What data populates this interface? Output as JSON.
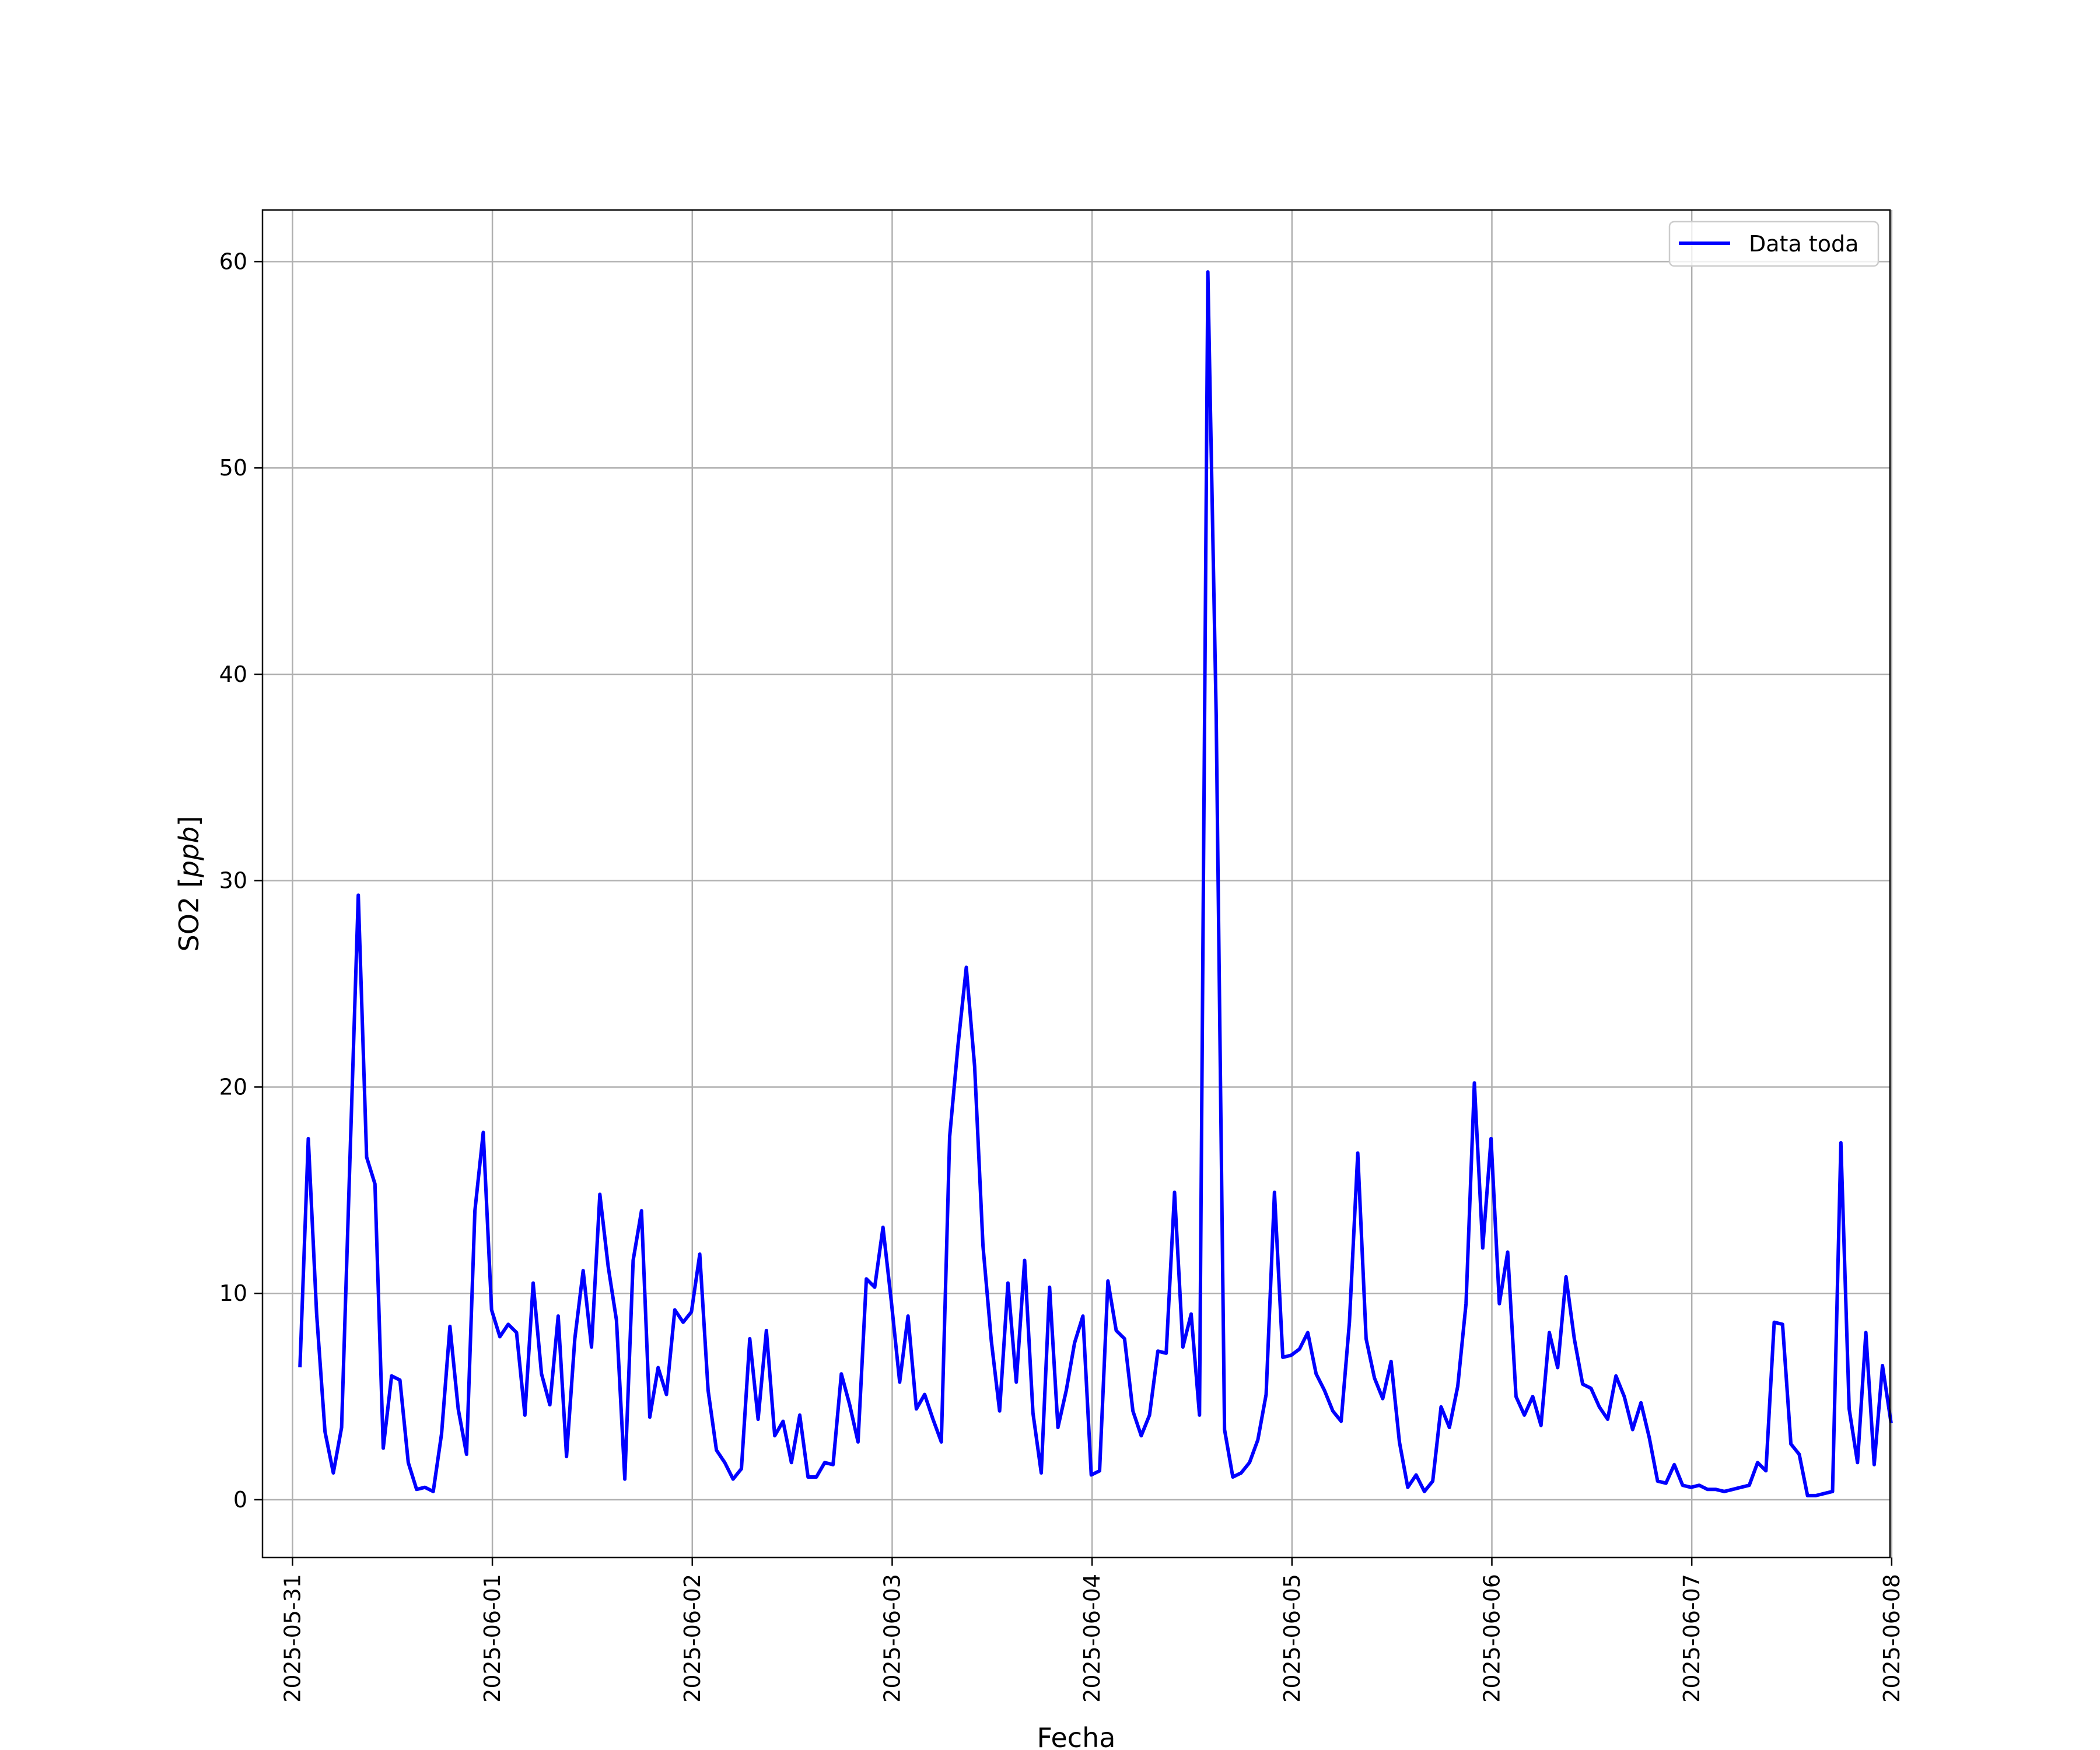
{
  "chart_data": {
    "type": "line",
    "xlabel": "Fecha",
    "ylabel": "SO2 [ppb]",
    "ylabel_italic_part": "ppb",
    "ylim": [
      -2.8,
      62.5
    ],
    "yticks": [
      0,
      10,
      20,
      30,
      40,
      50,
      60
    ],
    "xlim_hours": [
      -3.6,
      191.8
    ],
    "xticks": [
      "2025-05-31",
      "2025-06-01",
      "2025-06-02",
      "2025-06-03",
      "2025-06-04",
      "2025-06-05",
      "2025-06-06",
      "2025-06-07",
      "2025-06-08"
    ],
    "grid": true,
    "legend_position": "top-right",
    "series": [
      {
        "name": "Data toda",
        "color": "#0000ff",
        "points": [
          [
            0.9,
            6.5
          ],
          [
            1.9,
            17.5
          ],
          [
            2.9,
            9.0
          ],
          [
            3.9,
            3.3
          ],
          [
            4.9,
            1.3
          ],
          [
            5.9,
            3.5
          ],
          [
            6.9,
            16.5
          ],
          [
            7.9,
            29.3
          ],
          [
            8.9,
            16.6
          ],
          [
            9.9,
            15.3
          ],
          [
            10.9,
            2.5
          ],
          [
            11.9,
            6.0
          ],
          [
            12.9,
            5.8
          ],
          [
            13.9,
            1.8
          ],
          [
            14.9,
            0.5
          ],
          [
            15.9,
            0.6
          ],
          [
            16.9,
            0.4
          ],
          [
            17.9,
            3.2
          ],
          [
            18.9,
            8.4
          ],
          [
            19.9,
            4.4
          ],
          [
            20.9,
            2.2
          ],
          [
            21.9,
            14.0
          ],
          [
            22.9,
            17.8
          ],
          [
            23.9,
            9.2
          ],
          [
            24.9,
            7.9
          ],
          [
            25.9,
            8.5
          ],
          [
            26.9,
            8.1
          ],
          [
            27.9,
            4.1
          ],
          [
            28.9,
            10.5
          ],
          [
            29.9,
            6.1
          ],
          [
            30.9,
            4.6
          ],
          [
            31.9,
            8.9
          ],
          [
            32.9,
            2.1
          ],
          [
            33.9,
            7.8
          ],
          [
            34.9,
            11.1
          ],
          [
            35.9,
            7.4
          ],
          [
            36.9,
            14.8
          ],
          [
            37.9,
            11.3
          ],
          [
            38.9,
            8.7
          ],
          [
            39.9,
            1.0
          ],
          [
            40.9,
            11.6
          ],
          [
            41.9,
            14.0
          ],
          [
            42.9,
            4.0
          ],
          [
            43.9,
            6.4
          ],
          [
            44.9,
            5.1
          ],
          [
            45.9,
            9.2
          ],
          [
            46.9,
            8.6
          ],
          [
            47.9,
            9.1
          ],
          [
            48.9,
            11.9
          ],
          [
            49.9,
            5.3
          ],
          [
            50.9,
            2.4
          ],
          [
            51.9,
            1.8
          ],
          [
            52.9,
            1.0
          ],
          [
            53.9,
            1.5
          ],
          [
            54.9,
            7.8
          ],
          [
            55.9,
            3.9
          ],
          [
            56.9,
            8.2
          ],
          [
            57.9,
            3.1
          ],
          [
            58.9,
            3.8
          ],
          [
            59.9,
            1.8
          ],
          [
            60.9,
            4.1
          ],
          [
            61.9,
            1.1
          ],
          [
            62.9,
            1.1
          ],
          [
            63.9,
            1.8
          ],
          [
            64.9,
            1.7
          ],
          [
            65.9,
            6.1
          ],
          [
            66.9,
            4.6
          ],
          [
            67.9,
            2.8
          ],
          [
            68.9,
            10.7
          ],
          [
            69.9,
            10.3
          ],
          [
            70.9,
            13.2
          ],
          [
            71.9,
            9.6
          ],
          [
            72.9,
            5.7
          ],
          [
            73.9,
            8.9
          ],
          [
            74.9,
            4.4
          ],
          [
            75.9,
            5.1
          ],
          [
            76.9,
            3.9
          ],
          [
            77.9,
            2.8
          ],
          [
            78.9,
            17.6
          ],
          [
            79.9,
            22.0
          ],
          [
            80.9,
            25.8
          ],
          [
            81.9,
            21.0
          ],
          [
            82.9,
            12.3
          ],
          [
            83.9,
            7.7
          ],
          [
            84.9,
            4.3
          ],
          [
            85.9,
            10.5
          ],
          [
            86.9,
            5.7
          ],
          [
            87.9,
            11.6
          ],
          [
            88.9,
            4.2
          ],
          [
            89.9,
            1.3
          ],
          [
            90.9,
            10.3
          ],
          [
            91.9,
            3.5
          ],
          [
            92.9,
            5.3
          ],
          [
            93.9,
            7.6
          ],
          [
            94.9,
            8.9
          ],
          [
            95.9,
            1.2
          ],
          [
            96.9,
            1.4
          ],
          [
            97.9,
            10.6
          ],
          [
            98.9,
            8.2
          ],
          [
            99.9,
            7.8
          ],
          [
            100.9,
            4.3
          ],
          [
            101.9,
            3.1
          ],
          [
            102.9,
            4.1
          ],
          [
            103.9,
            7.2
          ],
          [
            104.9,
            7.1
          ],
          [
            105.9,
            14.9
          ],
          [
            106.9,
            7.4
          ],
          [
            107.9,
            9.0
          ],
          [
            108.9,
            4.1
          ],
          [
            109.9,
            59.5
          ],
          [
            110.9,
            38.0
          ],
          [
            111.9,
            3.4
          ],
          [
            112.9,
            1.1
          ],
          [
            113.9,
            1.3
          ],
          [
            114.9,
            1.8
          ],
          [
            115.9,
            2.9
          ],
          [
            116.9,
            5.1
          ],
          [
            117.9,
            14.9
          ],
          [
            118.9,
            6.9
          ],
          [
            119.9,
            7.0
          ],
          [
            120.9,
            7.3
          ],
          [
            121.9,
            8.1
          ],
          [
            122.9,
            6.1
          ],
          [
            123.9,
            5.3
          ],
          [
            124.9,
            4.3
          ],
          [
            125.9,
            3.8
          ],
          [
            126.9,
            8.6
          ],
          [
            127.9,
            16.8
          ],
          [
            128.9,
            7.8
          ],
          [
            129.9,
            5.9
          ],
          [
            130.9,
            4.9
          ],
          [
            131.9,
            6.7
          ],
          [
            132.9,
            2.8
          ],
          [
            133.9,
            0.6
          ],
          [
            134.9,
            1.2
          ],
          [
            135.9,
            0.4
          ],
          [
            136.9,
            0.9
          ],
          [
            137.9,
            4.5
          ],
          [
            138.9,
            3.5
          ],
          [
            139.9,
            5.5
          ],
          [
            140.9,
            9.5
          ],
          [
            141.9,
            20.2
          ],
          [
            142.9,
            12.2
          ],
          [
            143.9,
            17.5
          ],
          [
            144.9,
            9.5
          ],
          [
            145.9,
            12.0
          ],
          [
            146.9,
            5.0
          ],
          [
            147.9,
            4.1
          ],
          [
            148.9,
            5.0
          ],
          [
            149.9,
            3.6
          ],
          [
            150.9,
            8.1
          ],
          [
            151.9,
            6.4
          ],
          [
            152.9,
            10.8
          ],
          [
            153.9,
            7.8
          ],
          [
            154.9,
            5.6
          ],
          [
            155.9,
            5.4
          ],
          [
            156.9,
            4.5
          ],
          [
            157.9,
            3.9
          ],
          [
            158.9,
            6.0
          ],
          [
            159.9,
            5.0
          ],
          [
            160.9,
            3.4
          ],
          [
            161.9,
            4.7
          ],
          [
            162.9,
            3.0
          ],
          [
            163.9,
            0.9
          ],
          [
            164.9,
            0.8
          ],
          [
            165.9,
            1.7
          ],
          [
            166.9,
            0.7
          ],
          [
            167.9,
            0.6
          ],
          [
            168.9,
            0.7
          ],
          [
            169.9,
            0.5
          ],
          [
            170.9,
            0.5
          ],
          [
            171.9,
            0.4
          ],
          [
            172.9,
            0.5
          ],
          [
            173.9,
            0.6
          ],
          [
            174.9,
            0.7
          ],
          [
            175.9,
            1.8
          ],
          [
            176.9,
            1.4
          ],
          [
            177.9,
            8.6
          ],
          [
            178.9,
            8.5
          ],
          [
            179.9,
            2.7
          ],
          [
            180.9,
            2.2
          ],
          [
            181.9,
            0.2
          ],
          [
            182.9,
            0.2
          ],
          [
            183.9,
            0.3
          ],
          [
            184.9,
            0.4
          ],
          [
            185.9,
            17.3
          ],
          [
            186.9,
            4.4
          ],
          [
            187.9,
            1.8
          ],
          [
            188.9,
            8.1
          ],
          [
            189.9,
            1.7
          ],
          [
            190.9,
            6.5
          ],
          [
            191.9,
            3.8
          ]
        ]
      }
    ]
  }
}
